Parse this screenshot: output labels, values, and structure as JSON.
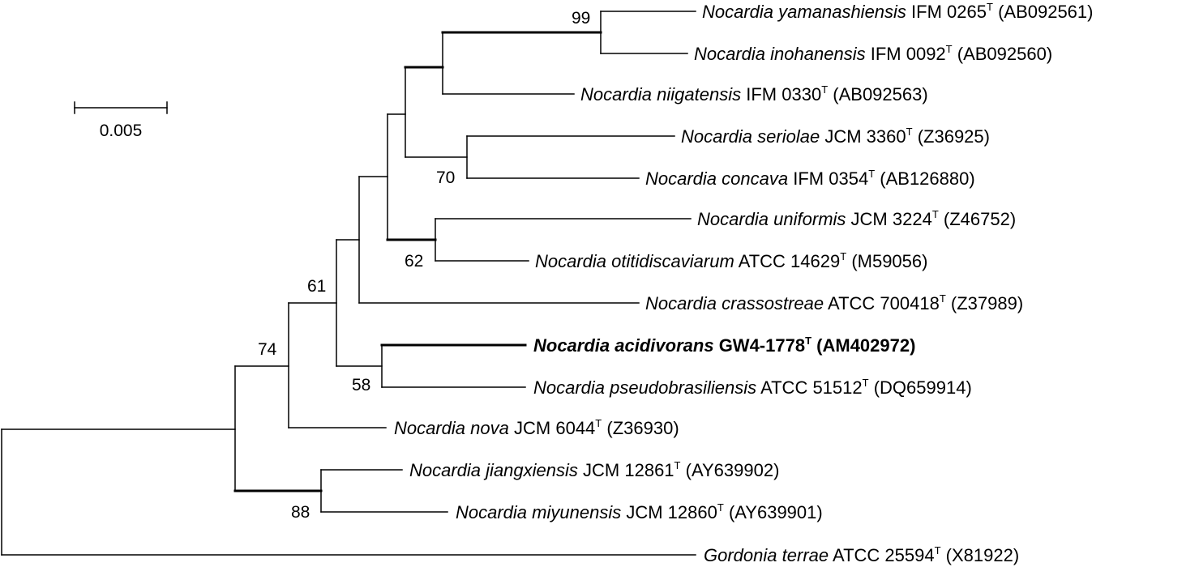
{
  "scale_bar": {
    "label": "0.005"
  },
  "taxa": [
    {
      "id": "t1",
      "genus": "Nocardia",
      "species": "yamanashiensis",
      "strain": "IFM 0265",
      "type_mark": "T",
      "accession": "(AB092561)",
      "highlight": false
    },
    {
      "id": "t2",
      "genus": "Nocardia",
      "species": "inohanensis",
      "strain": "IFM 0092",
      "type_mark": "T",
      "accession": "(AB092560)",
      "highlight": false
    },
    {
      "id": "t3",
      "genus": "Nocardia",
      "species": "niigatensis",
      "strain": "IFM 0330",
      "type_mark": "T",
      "accession": "(AB092563)",
      "highlight": false
    },
    {
      "id": "t4",
      "genus": "Nocardia",
      "species": "seriolae",
      "strain": "JCM 3360",
      "type_mark": "T",
      "accession": "(Z36925)",
      "highlight": false
    },
    {
      "id": "t5",
      "genus": "Nocardia",
      "species": "concava",
      "strain": "IFM 0354",
      "type_mark": "T",
      "accession": "(AB126880)",
      "highlight": false
    },
    {
      "id": "t6",
      "genus": "Nocardia",
      "species": "uniformis",
      "strain": "JCM 3224",
      "type_mark": "T",
      "accession": "(Z46752)",
      "highlight": false
    },
    {
      "id": "t7",
      "genus": "Nocardia",
      "species": "otitidiscaviarum",
      "strain": "ATCC 14629",
      "type_mark": "T",
      "accession": "(M59056)",
      "highlight": false
    },
    {
      "id": "t8",
      "genus": "Nocardia",
      "species": "crassostreae",
      "strain": "ATCC 700418",
      "type_mark": "T",
      "accession": "(Z37989)",
      "highlight": false
    },
    {
      "id": "t9",
      "genus": "Nocardia",
      "species": "acidivorans",
      "strain": "GW4-1778",
      "type_mark": "T",
      "accession": "(AM402972)",
      "highlight": true
    },
    {
      "id": "t10",
      "genus": "Nocardia",
      "species": "pseudobrasiliensis",
      "strain": "ATCC 51512",
      "type_mark": "T",
      "accession": "(DQ659914)",
      "highlight": false
    },
    {
      "id": "t11",
      "genus": "Nocardia",
      "species": "nova",
      "strain": "JCM 6044",
      "type_mark": "T",
      "accession": "(Z36930)",
      "highlight": false
    },
    {
      "id": "t12",
      "genus": "Nocardia",
      "species": "jiangxiensis",
      "strain": "JCM 12861",
      "type_mark": "T",
      "accession": "(AY639902)",
      "highlight": false
    },
    {
      "id": "t13",
      "genus": "Nocardia",
      "species": "miyunensis",
      "strain": "JCM 12860",
      "type_mark": "T",
      "accession": "(AY639901)",
      "highlight": false
    },
    {
      "id": "t14",
      "genus": "Gordonia",
      "species": "terrae",
      "strain": "ATCC 25594",
      "type_mark": "T",
      "accession": "(X81922)",
      "highlight": false
    }
  ],
  "bootstrap_values": {
    "yamanashiensis_inohanensis": "99",
    "seriolae_concava": "70",
    "uniformis_otitidiscaviarum": "62",
    "nocardia_core": "61",
    "acidivorans_pseudobrasiliensis": "58",
    "nocardia_with_nova": "74",
    "jiangxiensis_miyunensis": "88"
  }
}
